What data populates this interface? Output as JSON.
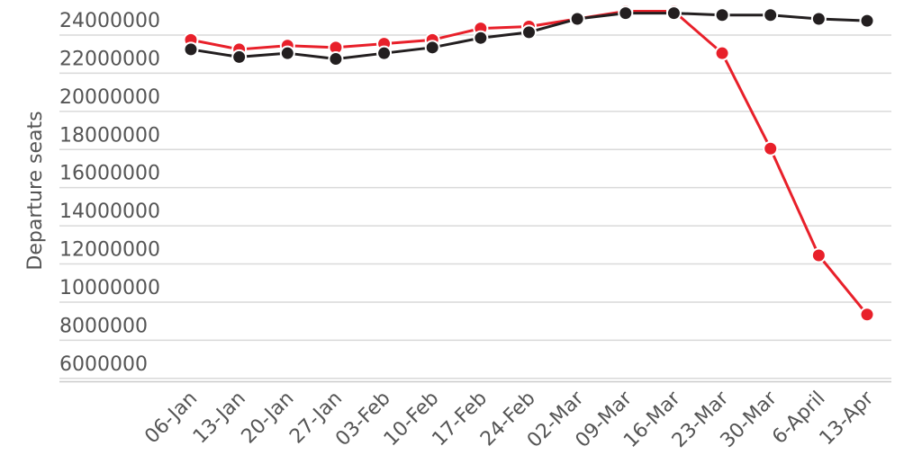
{
  "chart_data": {
    "type": "line",
    "title": "",
    "xlabel": "",
    "ylabel": "Departure seats",
    "ylim": [
      5000000,
      24000000
    ],
    "yticks": [
      6000000,
      8000000,
      10000000,
      12000000,
      14000000,
      16000000,
      18000000,
      20000000,
      22000000,
      24000000
    ],
    "grid": true,
    "legend": "none",
    "categories": [
      "06-Jan",
      "13-Jan",
      "20-Jan",
      "27-Jan",
      "03-Feb",
      "10-Feb",
      "17-Feb",
      "24-Feb",
      "02-Mar",
      "09-Mar",
      "16-Mar",
      "23-Mar",
      "30-Mar",
      "6-April",
      "13-Apr"
    ],
    "series": [
      {
        "color": "#e8202a",
        "values": [
          22900000,
          22400000,
          22600000,
          22500000,
          22700000,
          22900000,
          23500000,
          23600000,
          24000000,
          24400000,
          24400000,
          22200000,
          17200000,
          11600000,
          8500000
        ]
      },
      {
        "color": "#231f20",
        "values": [
          22400000,
          22000000,
          22200000,
          21900000,
          22200000,
          22500000,
          23000000,
          23300000,
          24000000,
          24300000,
          24300000,
          24200000,
          24200000,
          24000000,
          23900000
        ]
      }
    ]
  }
}
